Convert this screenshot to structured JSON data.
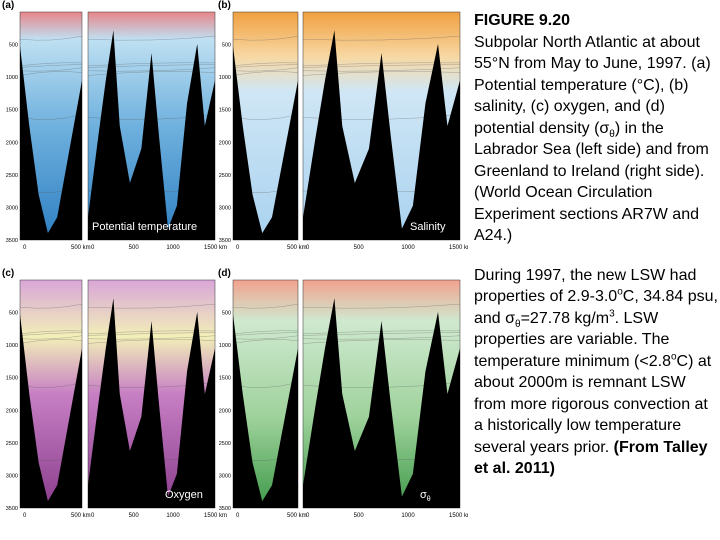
{
  "figure": {
    "depth_ticks": [
      "500",
      "1000",
      "1500",
      "2000",
      "2500",
      "3000",
      "3500"
    ],
    "panels": [
      {
        "label": "(a)",
        "title_parts": [
          "Potential temperature"
        ],
        "km_left": [
          "0",
          "500 km"
        ],
        "km_right": [
          "0",
          "500",
          "1000",
          "1500 km"
        ]
      },
      {
        "label": "(b)",
        "title_parts": [
          "Salinity"
        ],
        "km_left": [
          "0",
          "500 km"
        ],
        "km_right": [
          "0",
          "500",
          "1000",
          "1500 km"
        ]
      },
      {
        "label": "(c)",
        "title_parts": [
          "Oxygen"
        ],
        "km_left": [
          "0",
          "500 km"
        ],
        "km_right": [
          "0",
          "500",
          "1000",
          "1500 km"
        ]
      },
      {
        "label": "(d)",
        "title_parts": [
          "σ",
          "θ"
        ],
        "km_left": [
          "0",
          "500 km"
        ],
        "km_right": [
          "0",
          "500",
          "1000",
          "1500 km"
        ]
      }
    ]
  },
  "caption": {
    "heading": "FIGURE 9.20",
    "parts": [
      "Subpolar North Atlantic at about 55°N from May to June, 1997. (a) Potential temperature (°C), (b) salinity, (c) oxygen, and (d) potential density (σ",
      "θ",
      ") in the Labrador Sea (left side) and from Greenland to Ireland (right side). (World Ocean Circulation Experiment sections AR7W and A24.)"
    ]
  },
  "note": {
    "parts": [
      "During 1997, the new LSW had properties of 2.9-3.0",
      "o",
      "C, 34.84 psu, and σ",
      "θ",
      "=27.78 kg/m",
      "3",
      ". LSW properties are variable. The temperature minimum (<2.8",
      "o",
      "C) at about 2000m is remnant LSW from more rigorous convection at a historically low temperature several years prior. ",
      "(From Talley et al. 2011)"
    ]
  }
}
